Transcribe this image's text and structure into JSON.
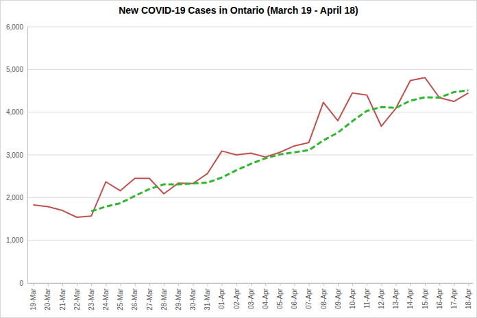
{
  "chart_data": {
    "type": "line",
    "title": "New COVID-19 Cases in Ontario (March 19 - April 18)",
    "categories": [
      "19-Mar",
      "20-Mar",
      "21-Mar",
      "22-Mar",
      "23-Mar",
      "24-Mar",
      "25-Mar",
      "26-Mar",
      "27-Mar",
      "28-Mar",
      "29-Mar",
      "30-Mar",
      "31-Mar",
      "01-Apr",
      "02-Apr",
      "03-Apr",
      "04-Apr",
      "05-Apr",
      "06-Apr",
      "07-Apr",
      "08-Apr",
      "09-Apr",
      "10-Apr",
      "11-Apr",
      "12-Apr",
      "13-Apr",
      "14-Apr",
      "15-Apr",
      "16-Apr",
      "17-Apr",
      "18-Apr"
    ],
    "series": [
      {
        "color": "#c0504d",
        "line_style": "solid",
        "values": [
          1830,
          1790,
          1700,
          1540,
          1570,
          2370,
          2160,
          2450,
          2450,
          2090,
          2340,
          2330,
          2560,
          3090,
          3000,
          3040,
          2950,
          3060,
          3210,
          3290,
          4230,
          3800,
          4450,
          4400,
          3670,
          4090,
          4740,
          4810,
          4340,
          4250,
          4450
        ]
      },
      {
        "color": "#2eb82e",
        "line_style": "dashed",
        "values": [
          null,
          null,
          null,
          null,
          1680,
          1790,
          1870,
          2040,
          2200,
          2310,
          2310,
          2330,
          2350,
          2470,
          2640,
          2790,
          2920,
          3010,
          3060,
          3110,
          3340,
          3520,
          3790,
          4030,
          4120,
          4100,
          4270,
          4350,
          4340,
          4470,
          4510
        ]
      }
    ],
    "ylim": [
      0,
      6000
    ],
    "yticks": [
      0,
      {
        "value": 1000,
        "label": "1,000"
      },
      {
        "value": 2000,
        "label": "2,000"
      },
      {
        "value": 3000,
        "label": "3,000"
      },
      {
        "value": 4000,
        "label": "4,000"
      },
      {
        "value": 5000,
        "label": "5,000"
      },
      {
        "value": 6000,
        "label": "6,000"
      }
    ],
    "grid": true
  }
}
